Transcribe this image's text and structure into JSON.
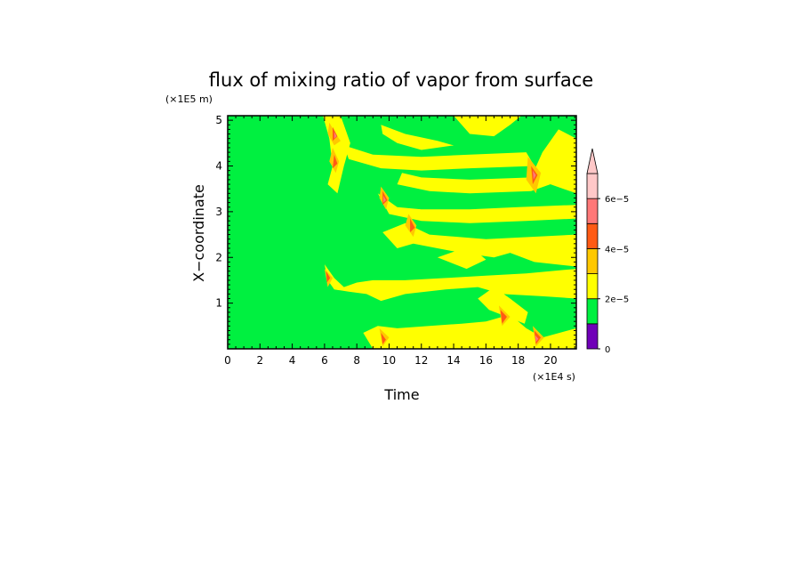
{
  "chart_data": {
    "type": "heatmap",
    "title": "flux of mixing ratio of vapor from surface",
    "xlabel": "Time",
    "ylabel": "X−coordinate",
    "x_unit": "(×1E4 s)",
    "y_unit": "(×1E5 m)",
    "xlim": [
      0,
      21.6
    ],
    "ylim": [
      0,
      5.1
    ],
    "x_ticks": [
      0,
      2,
      4,
      6,
      8,
      10,
      12,
      14,
      16,
      18,
      20
    ],
    "x_tick_labels": [
      "0",
      "2",
      "4",
      "6",
      "8",
      "10",
      "12",
      "14",
      "16",
      "18",
      "20"
    ],
    "y_ticks": [
      1,
      2,
      3,
      4,
      5
    ],
    "y_tick_labels": [
      "1",
      "2",
      "3",
      "4",
      "5"
    ],
    "background_level_color": "#00f040",
    "colorbar": {
      "levels": [
        0,
        1e-05,
        2e-05,
        3e-05,
        4e-05,
        5e-05,
        6e-05,
        7e-05
      ],
      "labels": [
        "0",
        "2e−5",
        "4e−5",
        "6e−5"
      ],
      "label_values": [
        0,
        2e-05,
        4e-05,
        6e-05
      ],
      "colors": [
        "#7000b8",
        "#00f040",
        "#ffff00",
        "#ffc800",
        "#ff5a14",
        "#ff7878",
        "#ffc8c8"
      ],
      "extend": "max"
    },
    "regions": [
      {
        "level": 1,
        "points": [
          [
            5.9,
            5.1
          ],
          [
            6.3,
            4.6
          ],
          [
            6.5,
            4.0
          ],
          [
            6.2,
            3.6
          ],
          [
            6.8,
            3.4
          ],
          [
            7.2,
            4.0
          ],
          [
            7.6,
            4.5
          ],
          [
            7.0,
            5.1
          ]
        ]
      },
      {
        "level": 1,
        "points": [
          [
            7.2,
            4.45
          ],
          [
            9.0,
            4.25
          ],
          [
            12.0,
            4.2
          ],
          [
            15.0,
            4.25
          ],
          [
            18.5,
            4.3
          ],
          [
            19.0,
            4.0
          ],
          [
            15.0,
            3.95
          ],
          [
            12.0,
            3.9
          ],
          [
            9.5,
            3.95
          ],
          [
            7.5,
            4.15
          ]
        ]
      },
      {
        "level": 1,
        "points": [
          [
            9.5,
            4.9
          ],
          [
            11.0,
            4.7
          ],
          [
            13.0,
            4.55
          ],
          [
            14.0,
            4.45
          ],
          [
            12.0,
            4.35
          ],
          [
            10.5,
            4.5
          ],
          [
            9.6,
            4.7
          ]
        ]
      },
      {
        "level": 1,
        "points": [
          [
            14.0,
            5.1
          ],
          [
            15.0,
            4.7
          ],
          [
            16.5,
            4.65
          ],
          [
            17.5,
            4.9
          ],
          [
            18.2,
            5.1
          ]
        ]
      },
      {
        "level": 1,
        "points": [
          [
            10.5,
            3.6
          ],
          [
            12.5,
            3.45
          ],
          [
            15.0,
            3.4
          ],
          [
            18.8,
            3.45
          ],
          [
            21.6,
            3.8
          ],
          [
            21.6,
            4.6
          ],
          [
            20.5,
            4.8
          ],
          [
            19.5,
            4.3
          ],
          [
            18.8,
            3.75
          ],
          [
            15.0,
            3.7
          ],
          [
            12.0,
            3.75
          ],
          [
            10.8,
            3.85
          ]
        ]
      },
      {
        "level": 1,
        "points": [
          [
            9.3,
            3.4
          ],
          [
            10.5,
            3.1
          ],
          [
            12.0,
            3.05
          ],
          [
            15.0,
            3.05
          ],
          [
            18.0,
            3.1
          ],
          [
            21.6,
            3.15
          ],
          [
            21.6,
            2.85
          ],
          [
            18.5,
            2.8
          ],
          [
            15.0,
            2.75
          ],
          [
            12.0,
            2.8
          ],
          [
            10.0,
            2.95
          ]
        ]
      },
      {
        "level": 1,
        "points": [
          [
            9.6,
            2.55
          ],
          [
            11.0,
            2.75
          ],
          [
            12.5,
            2.5
          ],
          [
            16.0,
            2.4
          ],
          [
            21.6,
            2.5
          ],
          [
            21.6,
            1.8
          ],
          [
            19.0,
            1.9
          ],
          [
            17.5,
            2.1
          ],
          [
            16.5,
            2.0
          ],
          [
            14.5,
            2.1
          ],
          [
            13.0,
            2.2
          ],
          [
            11.5,
            2.3
          ],
          [
            10.5,
            2.2
          ]
        ]
      },
      {
        "level": 1,
        "points": [
          [
            6.0,
            1.85
          ],
          [
            6.6,
            1.55
          ],
          [
            7.2,
            1.35
          ],
          [
            8.0,
            1.45
          ],
          [
            9.0,
            1.5
          ],
          [
            11.0,
            1.5
          ],
          [
            13.5,
            1.55
          ],
          [
            16.0,
            1.6
          ],
          [
            18.5,
            1.65
          ],
          [
            21.6,
            1.75
          ],
          [
            21.6,
            1.1
          ],
          [
            19.5,
            1.15
          ],
          [
            17.0,
            1.2
          ],
          [
            15.5,
            1.35
          ],
          [
            13.5,
            1.3
          ],
          [
            11.0,
            1.2
          ],
          [
            9.5,
            1.05
          ],
          [
            8.6,
            1.2
          ],
          [
            7.5,
            1.25
          ],
          [
            6.6,
            1.3
          ],
          [
            6.2,
            1.5
          ]
        ]
      },
      {
        "level": 1,
        "points": [
          [
            8.4,
            0.35
          ],
          [
            9.3,
            0.5
          ],
          [
            10.5,
            0.45
          ],
          [
            12.5,
            0.5
          ],
          [
            14.5,
            0.55
          ],
          [
            16.0,
            0.6
          ],
          [
            17.5,
            0.75
          ],
          [
            18.5,
            0.45
          ],
          [
            19.5,
            0.25
          ],
          [
            21.6,
            0.45
          ],
          [
            21.6,
            0.0
          ],
          [
            9.0,
            0.0
          ]
        ]
      },
      {
        "level": 1,
        "points": [
          [
            15.5,
            1.1
          ],
          [
            16.5,
            1.35
          ],
          [
            17.5,
            1.1
          ],
          [
            18.6,
            0.8
          ],
          [
            18.4,
            0.55
          ],
          [
            17.3,
            0.7
          ],
          [
            16.2,
            0.85
          ]
        ]
      },
      {
        "level": 1,
        "points": [
          [
            20.0,
            3.6
          ],
          [
            21.6,
            3.4
          ],
          [
            21.6,
            4.2
          ],
          [
            20.8,
            4.0
          ]
        ]
      },
      {
        "level": 1,
        "points": [
          [
            13.0,
            2.0
          ],
          [
            14.8,
            1.75
          ],
          [
            16.0,
            1.95
          ],
          [
            15.0,
            2.25
          ]
        ]
      },
      {
        "level": 2,
        "points": [
          [
            6.3,
            4.95
          ],
          [
            6.7,
            4.7
          ],
          [
            7.0,
            4.55
          ],
          [
            6.6,
            4.45
          ],
          [
            6.2,
            4.7
          ]
        ]
      },
      {
        "level": 2,
        "points": [
          [
            6.5,
            4.4
          ],
          [
            6.9,
            4.1
          ],
          [
            6.7,
            3.85
          ],
          [
            6.3,
            4.1
          ]
        ]
      },
      {
        "level": 2,
        "points": [
          [
            9.5,
            3.55
          ],
          [
            10.0,
            3.3
          ],
          [
            9.8,
            3.05
          ],
          [
            9.4,
            3.3
          ]
        ]
      },
      {
        "level": 2,
        "points": [
          [
            11.2,
            2.95
          ],
          [
            11.7,
            2.7
          ],
          [
            11.5,
            2.45
          ],
          [
            11.0,
            2.7
          ]
        ]
      },
      {
        "level": 2,
        "points": [
          [
            6.0,
            1.75
          ],
          [
            6.5,
            1.55
          ],
          [
            6.2,
            1.35
          ]
        ]
      },
      {
        "level": 2,
        "points": [
          [
            9.4,
            0.45
          ],
          [
            10.0,
            0.25
          ],
          [
            9.6,
            0.05
          ]
        ]
      },
      {
        "level": 2,
        "points": [
          [
            16.8,
            0.95
          ],
          [
            17.5,
            0.7
          ],
          [
            17.0,
            0.5
          ]
        ]
      },
      {
        "level": 2,
        "points": [
          [
            18.6,
            4.2
          ],
          [
            19.4,
            3.85
          ],
          [
            19.1,
            3.4
          ],
          [
            18.5,
            3.7
          ]
        ]
      },
      {
        "level": 2,
        "points": [
          [
            18.9,
            0.5
          ],
          [
            19.6,
            0.25
          ],
          [
            19.1,
            0.05
          ]
        ]
      },
      {
        "level": 3,
        "points": [
          [
            6.5,
            4.85
          ],
          [
            6.8,
            4.65
          ],
          [
            6.5,
            4.55
          ]
        ]
      },
      {
        "level": 3,
        "points": [
          [
            6.6,
            4.25
          ],
          [
            6.8,
            4.05
          ],
          [
            6.5,
            3.95
          ]
        ]
      },
      {
        "level": 3,
        "points": [
          [
            9.6,
            3.45
          ],
          [
            9.9,
            3.25
          ],
          [
            9.6,
            3.15
          ]
        ]
      },
      {
        "level": 3,
        "points": [
          [
            11.3,
            2.85
          ],
          [
            11.6,
            2.65
          ],
          [
            11.3,
            2.55
          ]
        ]
      },
      {
        "level": 3,
        "points": [
          [
            6.1,
            1.7
          ],
          [
            6.35,
            1.55
          ],
          [
            6.15,
            1.45
          ]
        ]
      },
      {
        "level": 3,
        "points": [
          [
            9.5,
            0.35
          ],
          [
            9.8,
            0.2
          ],
          [
            9.6,
            0.1
          ]
        ]
      },
      {
        "level": 3,
        "points": [
          [
            16.9,
            0.85
          ],
          [
            17.3,
            0.7
          ],
          [
            17.0,
            0.55
          ]
        ]
      },
      {
        "level": 3,
        "points": [
          [
            18.8,
            4.0
          ],
          [
            19.2,
            3.8
          ],
          [
            18.9,
            3.6
          ]
        ]
      },
      {
        "level": 3,
        "points": [
          [
            19.0,
            0.4
          ],
          [
            19.4,
            0.25
          ],
          [
            19.1,
            0.1
          ]
        ]
      },
      {
        "level": 4,
        "points": [
          [
            6.6,
            4.75
          ],
          [
            6.75,
            4.65
          ],
          [
            6.6,
            4.6
          ]
        ]
      },
      {
        "level": 4,
        "points": [
          [
            9.65,
            3.35
          ],
          [
            9.8,
            3.25
          ],
          [
            9.65,
            3.2
          ]
        ]
      },
      {
        "level": 4,
        "points": [
          [
            18.9,
            3.9
          ],
          [
            19.1,
            3.8
          ],
          [
            18.95,
            3.7
          ]
        ]
      },
      {
        "level": 4,
        "points": [
          [
            19.05,
            0.3
          ],
          [
            19.25,
            0.22
          ],
          [
            19.1,
            0.15
          ]
        ]
      }
    ]
  }
}
